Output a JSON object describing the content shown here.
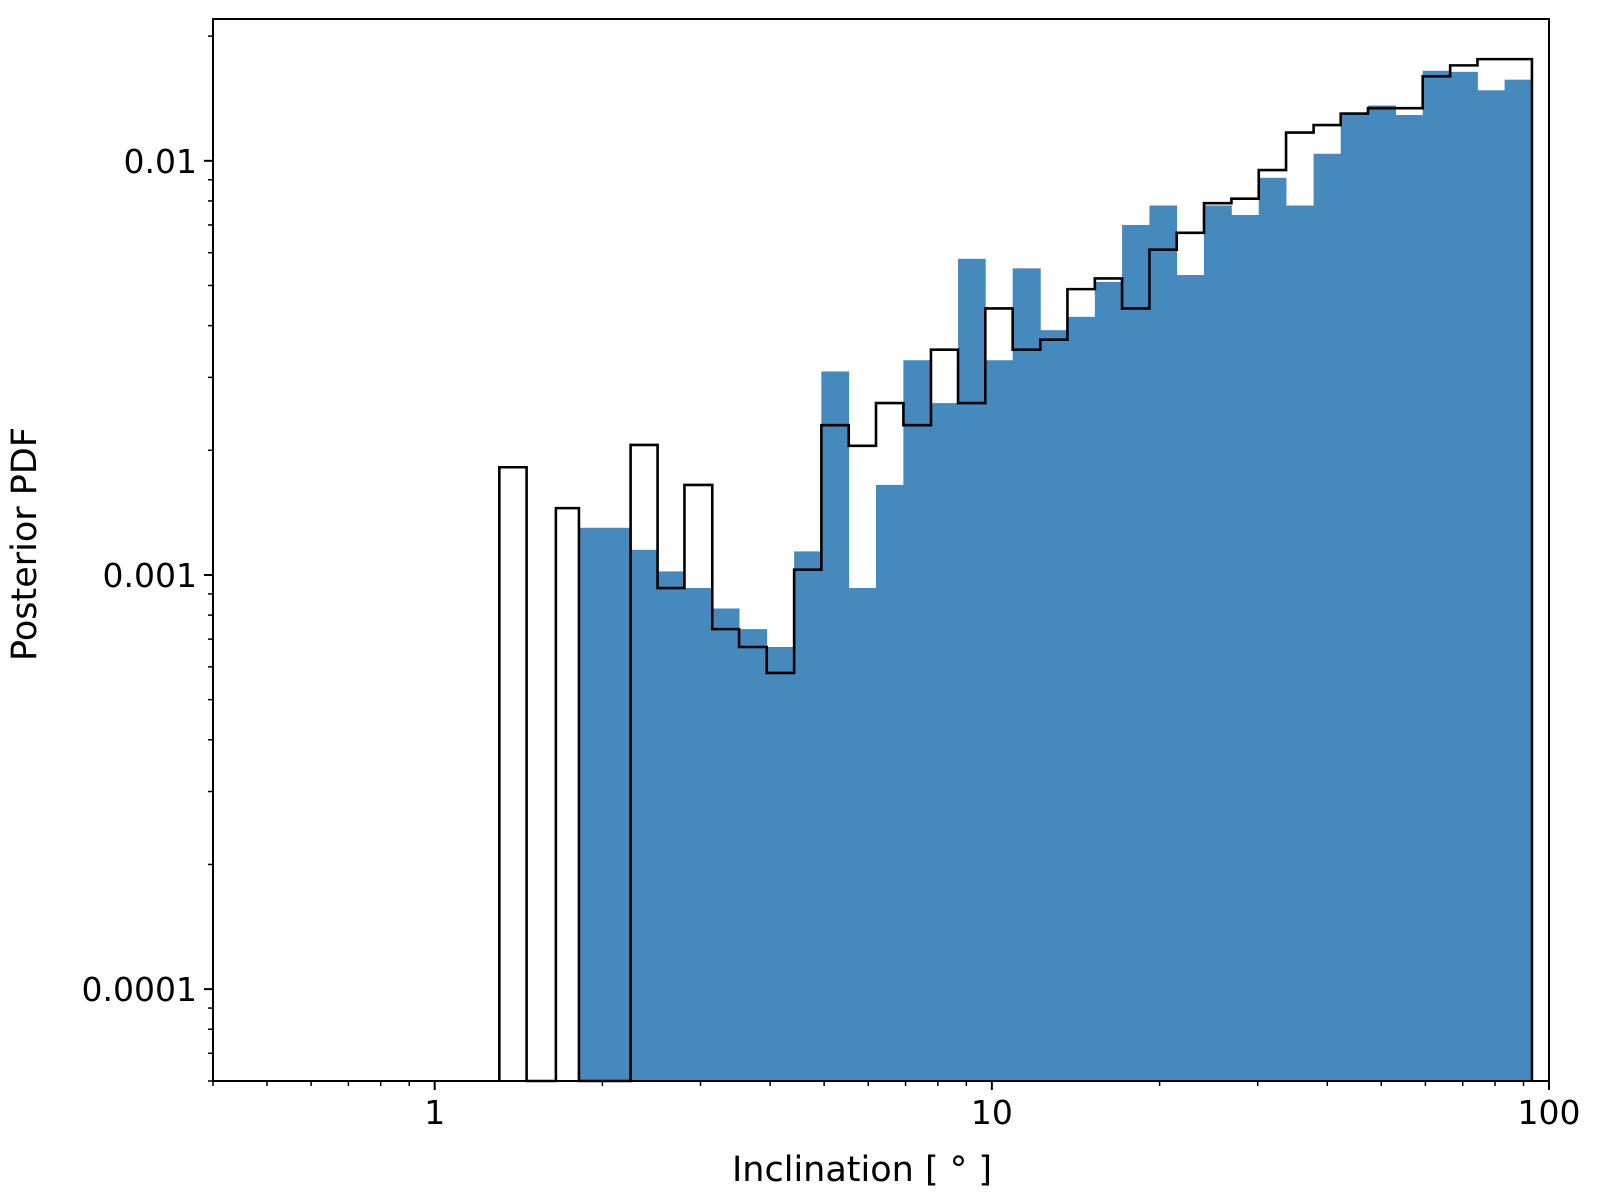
{
  "chart_data": {
    "type": "histogram",
    "xscale": "log",
    "yscale": "log",
    "xlabel": "Inclination [$^\\circ$]",
    "xlabel_text": "Inclination [ ° ]",
    "ylabel": "Posterior PDF",
    "xlim": [
      0.4,
      100
    ],
    "ylim": [
      6e-05,
      0.022
    ],
    "x_tick_labels": [
      {
        "value": 1,
        "label": "1"
      },
      {
        "value": 10,
        "label": "10"
      },
      {
        "value": 100,
        "label": "100"
      }
    ],
    "y_tick_labels": [
      {
        "value": 0.0001,
        "label": "0.0001"
      },
      {
        "value": 0.001,
        "label": "0.001"
      },
      {
        "value": 0.01,
        "label": "0.01"
      }
    ],
    "grid": false,
    "legend": "none",
    "series": [
      {
        "style": "filled",
        "color": "#4689bd",
        "bin_edges": [
          1.815,
          2.247,
          2.512,
          2.807,
          3.149,
          3.518,
          3.944,
          4.417,
          4.943,
          5.535,
          6.195,
          6.938,
          7.775,
          8.696,
          9.733,
          10.898,
          12.217,
          13.666,
          15.304,
          17.128,
          19.179,
          21.47,
          24.031,
          26.915,
          30.132,
          33.732,
          37.801,
          42.279,
          47.328,
          53.033,
          59.336,
          66.464,
          74.406,
          83.236,
          93.191
        ],
        "values": [
          0.0013,
          0.00115,
          0.00102,
          0.00093,
          0.00083,
          0.00074,
          0.00067,
          0.00114,
          0.0031,
          0.00093,
          0.00165,
          0.0033,
          0.0026,
          0.0058,
          0.0033,
          0.0055,
          0.0039,
          0.0042,
          0.0051,
          0.007,
          0.0078,
          0.0053,
          0.0078,
          0.0074,
          0.0091,
          0.0078,
          0.0104,
          0.0131,
          0.0136,
          0.0129,
          0.0165,
          0.0164,
          0.0148,
          0.0157
        ]
      },
      {
        "style": "step",
        "color": "#000000",
        "bin_edges": [
          1.306,
          1.462,
          1.65,
          1.815,
          2.247,
          2.512,
          2.807,
          3.149,
          3.518,
          3.944,
          4.417,
          4.943,
          5.535,
          6.195,
          6.938,
          7.775,
          8.696,
          9.733,
          10.898,
          12.217,
          13.666,
          15.304,
          17.128,
          19.179,
          21.47,
          24.031,
          26.915,
          30.132,
          33.732,
          37.801,
          42.279,
          47.328,
          53.033,
          59.336,
          66.464,
          74.406,
          83.236,
          93.191
        ],
        "values": [
          0.00182,
          0,
          0.00145,
          0,
          0.00206,
          0.00093,
          0.00165,
          0.00074,
          0.00067,
          0.00058,
          0.00103,
          0.0023,
          0.00205,
          0.0026,
          0.0023,
          0.0035,
          0.0026,
          0.0044,
          0.0035,
          0.0037,
          0.0049,
          0.0052,
          0.0044,
          0.0061,
          0.0067,
          0.0079,
          0.0081,
          0.0095,
          0.0117,
          0.0122,
          0.013,
          0.0134,
          0.0134,
          0.016,
          0.017,
          0.0176,
          0.0176
        ]
      }
    ]
  }
}
